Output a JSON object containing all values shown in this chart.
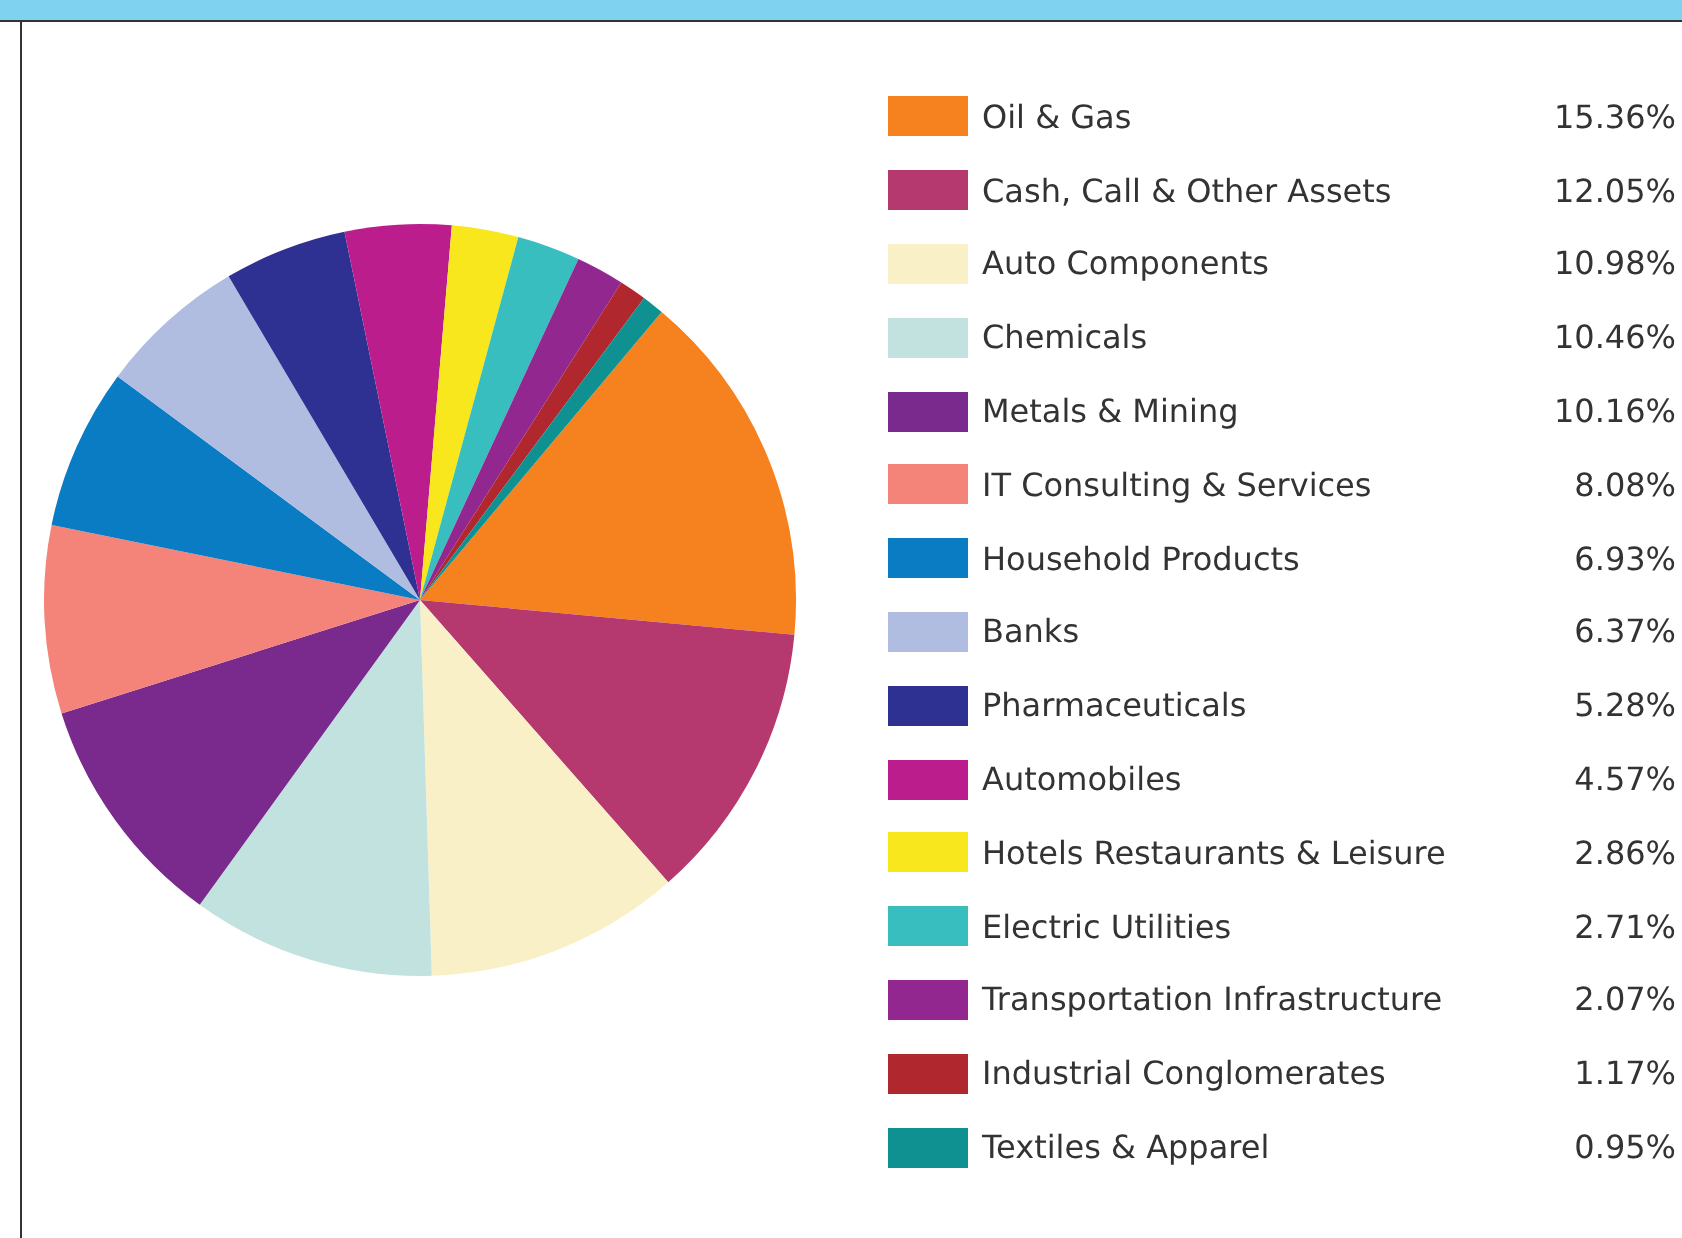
{
  "chart_data": {
    "type": "pie",
    "categories": [
      "Oil & Gas",
      "Cash, Call & Other Assets",
      "Auto Components",
      "Chemicals",
      "Metals & Mining",
      "IT Consulting & Services",
      "Household Products",
      "Banks",
      "Pharmaceuticals",
      "Automobiles",
      "Hotels Restaurants & Leisure",
      "Electric Utilities",
      "Transportation Infrastructure",
      "Industrial Conglomerates",
      "Textiles & Apparel"
    ],
    "values": [
      15.36,
      12.05,
      10.98,
      10.46,
      10.16,
      8.08,
      6.93,
      6.37,
      5.28,
      4.57,
      2.86,
      2.71,
      2.07,
      1.17,
      0.95
    ],
    "value_labels": [
      "15.36%",
      "12.05%",
      "10.98%",
      "10.46%",
      "10.16%",
      "8.08%",
      "6.93%",
      "6.37%",
      "5.28%",
      "4.57%",
      "2.86%",
      "2.71%",
      "2.07%",
      "1.17%",
      "0.95%"
    ],
    "colors": [
      "#f5821f",
      "#b5396f",
      "#faf0c8",
      "#c2e2e0",
      "#7a2a8c",
      "#f4837a",
      "#0a7cc4",
      "#b0bde0",
      "#2e3192",
      "#bb1e8c",
      "#f8e71c",
      "#38bebe",
      "#92278f",
      "#b0282e",
      "#0e9190"
    ],
    "legend": "right"
  }
}
